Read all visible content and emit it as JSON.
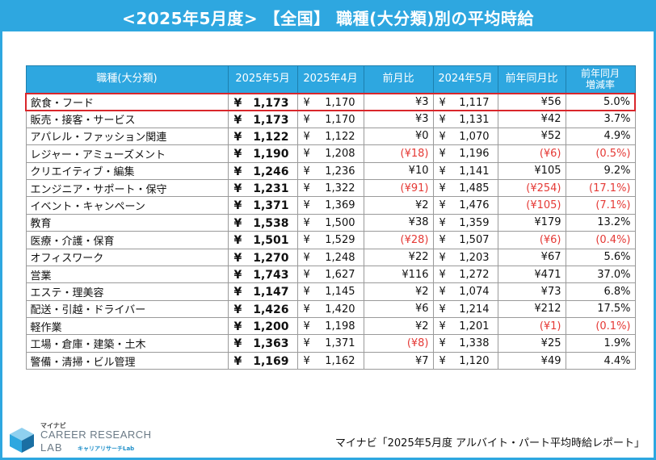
{
  "title": "<2025年5月度> 【全国】 職種(大分類)別の平均時給",
  "chart_data": {
    "type": "table",
    "columns": [
      "職種(大分類)",
      "2025年5月",
      "2025年4月",
      "前月比",
      "2024年5月",
      "前年同月比",
      "前年同月\n増減率"
    ],
    "rows": [
      {
        "category": "飲食・フード",
        "may2025": "1,173",
        "apr2025": "1,170",
        "mom": "¥3",
        "mom_neg": false,
        "may2024": "1,117",
        "yoy": "¥56",
        "yoy_neg": false,
        "yoy_rate": "5.0%",
        "rate_neg": false
      },
      {
        "category": "販売・接客・サービス",
        "may2025": "1,173",
        "apr2025": "1,170",
        "mom": "¥3",
        "mom_neg": false,
        "may2024": "1,131",
        "yoy": "¥42",
        "yoy_neg": false,
        "yoy_rate": "3.7%",
        "rate_neg": false
      },
      {
        "category": "アパレル・ファッション関連",
        "may2025": "1,122",
        "apr2025": "1,122",
        "mom": "¥0",
        "mom_neg": false,
        "may2024": "1,070",
        "yoy": "¥52",
        "yoy_neg": false,
        "yoy_rate": "4.9%",
        "rate_neg": false
      },
      {
        "category": "レジャー・アミューズメント",
        "may2025": "1,190",
        "apr2025": "1,208",
        "mom": "(¥18)",
        "mom_neg": true,
        "may2024": "1,196",
        "yoy": "(¥6)",
        "yoy_neg": true,
        "yoy_rate": "(0.5%)",
        "rate_neg": true
      },
      {
        "category": "クリエイティブ・編集",
        "may2025": "1,246",
        "apr2025": "1,236",
        "mom": "¥10",
        "mom_neg": false,
        "may2024": "1,141",
        "yoy": "¥105",
        "yoy_neg": false,
        "yoy_rate": "9.2%",
        "rate_neg": false
      },
      {
        "category": "エンジニア・サポート・保守",
        "may2025": "1,231",
        "apr2025": "1,322",
        "mom": "(¥91)",
        "mom_neg": true,
        "may2024": "1,485",
        "yoy": "(¥254)",
        "yoy_neg": true,
        "yoy_rate": "(17.1%)",
        "rate_neg": true
      },
      {
        "category": "イベント・キャンペーン",
        "may2025": "1,371",
        "apr2025": "1,369",
        "mom": "¥2",
        "mom_neg": false,
        "may2024": "1,476",
        "yoy": "(¥105)",
        "yoy_neg": true,
        "yoy_rate": "(7.1%)",
        "rate_neg": true
      },
      {
        "category": "教育",
        "may2025": "1,538",
        "apr2025": "1,500",
        "mom": "¥38",
        "mom_neg": false,
        "may2024": "1,359",
        "yoy": "¥179",
        "yoy_neg": false,
        "yoy_rate": "13.2%",
        "rate_neg": false
      },
      {
        "category": "医療・介護・保育",
        "may2025": "1,501",
        "apr2025": "1,529",
        "mom": "(¥28)",
        "mom_neg": true,
        "may2024": "1,507",
        "yoy": "(¥6)",
        "yoy_neg": true,
        "yoy_rate": "(0.4%)",
        "rate_neg": true
      },
      {
        "category": "オフィスワーク",
        "may2025": "1,270",
        "apr2025": "1,248",
        "mom": "¥22",
        "mom_neg": false,
        "may2024": "1,203",
        "yoy": "¥67",
        "yoy_neg": false,
        "yoy_rate": "5.6%",
        "rate_neg": false
      },
      {
        "category": "営業",
        "may2025": "1,743",
        "apr2025": "1,627",
        "mom": "¥116",
        "mom_neg": false,
        "may2024": "1,272",
        "yoy": "¥471",
        "yoy_neg": false,
        "yoy_rate": "37.0%",
        "rate_neg": false
      },
      {
        "category": "エステ・理美容",
        "may2025": "1,147",
        "apr2025": "1,145",
        "mom": "¥2",
        "mom_neg": false,
        "may2024": "1,074",
        "yoy": "¥73",
        "yoy_neg": false,
        "yoy_rate": "6.8%",
        "rate_neg": false
      },
      {
        "category": "配送・引越・ドライバー",
        "may2025": "1,426",
        "apr2025": "1,420",
        "mom": "¥6",
        "mom_neg": false,
        "may2024": "1,214",
        "yoy": "¥212",
        "yoy_neg": false,
        "yoy_rate": "17.5%",
        "rate_neg": false
      },
      {
        "category": "軽作業",
        "may2025": "1,200",
        "apr2025": "1,198",
        "mom": "¥2",
        "mom_neg": false,
        "may2024": "1,201",
        "yoy": "(¥1)",
        "yoy_neg": true,
        "yoy_rate": "(0.1%)",
        "rate_neg": true
      },
      {
        "category": "工場・倉庫・建築・土木",
        "may2025": "1,363",
        "apr2025": "1,371",
        "mom": "(¥8)",
        "mom_neg": true,
        "may2024": "1,338",
        "yoy": "¥25",
        "yoy_neg": false,
        "yoy_rate": "1.9%",
        "rate_neg": false
      },
      {
        "category": "警備・清掃・ビル管理",
        "may2025": "1,169",
        "apr2025": "1,162",
        "mom": "¥7",
        "mom_neg": false,
        "may2024": "1,120",
        "yoy": "¥49",
        "yoy_neg": false,
        "yoy_rate": "4.4%",
        "rate_neg": false
      }
    ],
    "highlight_row": 0,
    "currency_symbol": "¥"
  },
  "colors": {
    "header_bg": "#2ea7e0",
    "negative": "#e53935",
    "highlight_border": "#d9262b"
  },
  "logo": {
    "small": "マイナビ",
    "main": "CAREER RESEARCH",
    "lab": "LAB",
    "sub": "キャリアリサーチLab"
  },
  "source": "マイナビ「2025年5月度 アルバイト・パート平均時給レポート」"
}
